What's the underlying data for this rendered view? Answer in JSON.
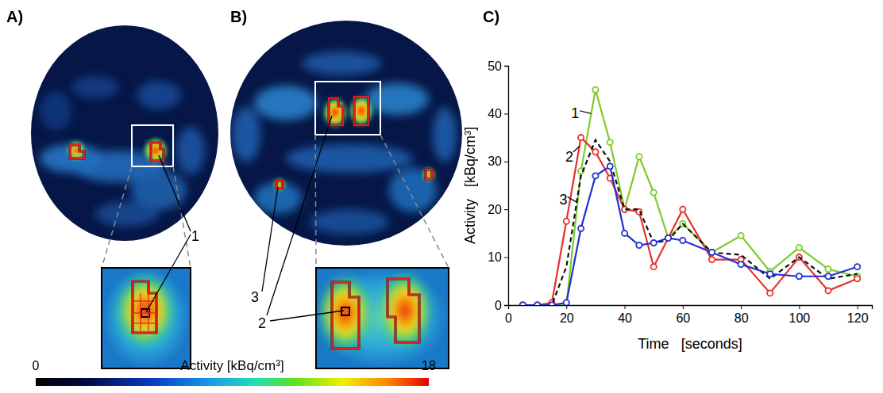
{
  "chart_data": {
    "type": "line",
    "x_label": "Time   [seconds]",
    "y_label": "Activity   [kBq/cm³]",
    "x": [
      5,
      10,
      15,
      20,
      25,
      30,
      35,
      40,
      45,
      50,
      55,
      60,
      70,
      80,
      90,
      100,
      110,
      120
    ],
    "series": [
      {
        "name": "1",
        "color": "#7ccc2a",
        "marker": "circle",
        "line_style": "solid",
        "values": [
          0,
          0,
          0,
          0,
          28,
          45,
          34,
          20,
          31,
          23.5,
          14,
          17,
          11,
          14.5,
          7,
          12,
          7.5,
          6
        ]
      },
      {
        "name": "2",
        "color": "#e8302a",
        "marker": "circle",
        "line_style": "solid",
        "values": [
          0,
          0,
          0.5,
          17.5,
          35,
          32,
          26.5,
          20,
          19.5,
          8,
          14,
          20,
          9.5,
          9.5,
          2.5,
          10,
          3,
          5.5
        ]
      },
      {
        "color": "#111111",
        "marker": "none",
        "line_style": "dashed",
        "values": [
          0,
          0,
          0,
          8,
          27,
          34.5,
          30,
          20,
          20,
          13,
          13.5,
          17,
          11,
          10.5,
          5.5,
          10,
          5.5,
          6.5
        ]
      },
      {
        "name": "3",
        "color": "#2030d0",
        "marker": "circle",
        "line_style": "solid",
        "values": [
          0,
          0,
          0,
          0.5,
          16,
          27,
          29,
          15,
          12.5,
          13,
          14,
          13.5,
          11,
          8.5,
          6.5,
          6,
          6,
          8
        ]
      }
    ],
    "xlim": [
      0,
      125
    ],
    "xticks": [
      0,
      20,
      40,
      60,
      80,
      100,
      120
    ],
    "ylim": [
      0,
      50
    ],
    "yticks": [
      0,
      10,
      20,
      30,
      40,
      50
    ],
    "grid": false
  },
  "figure": {
    "panels": [
      {
        "label": "A)",
        "regions": [
          "1"
        ]
      },
      {
        "label": "B)",
        "regions": [
          "2",
          "3"
        ]
      },
      {
        "label": "C)"
      }
    ],
    "colorbar": {
      "title": "Activity   [kBq/cm³]",
      "range": [
        0,
        18
      ],
      "ticks": [
        0,
        18
      ]
    }
  }
}
